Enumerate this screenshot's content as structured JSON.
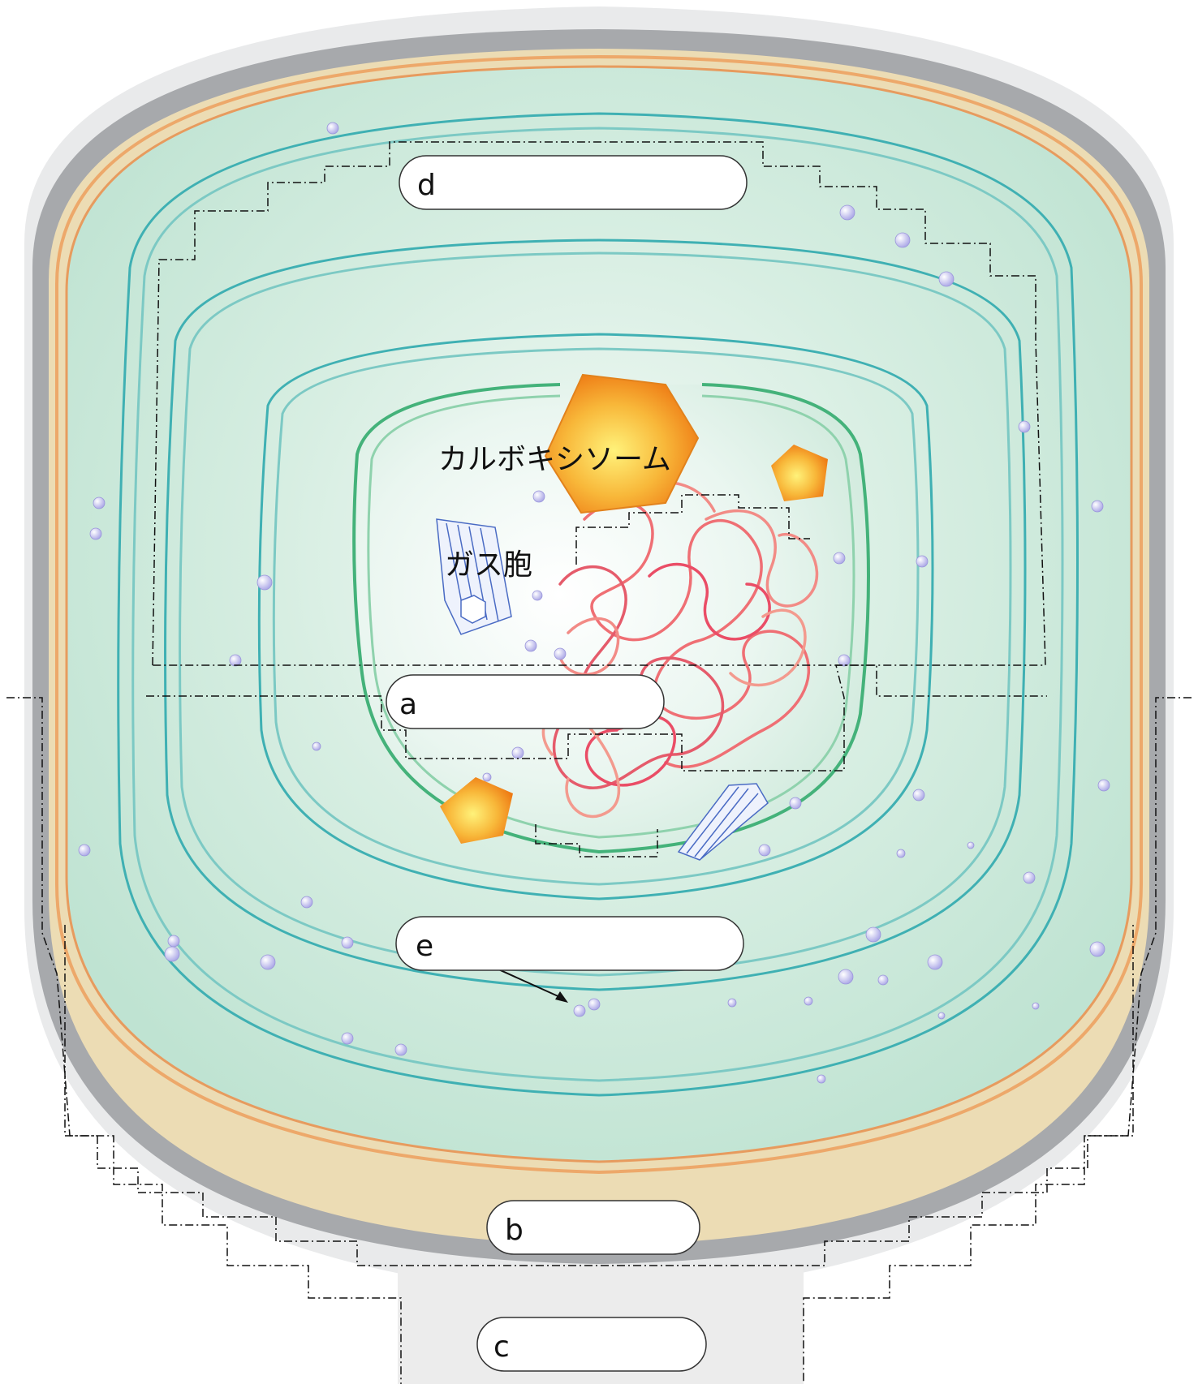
{
  "diagram": {
    "labels": {
      "carboxysome": "カルボキシソーム",
      "gas_vesicle": "ガス胞"
    },
    "blanks": [
      {
        "id": "a",
        "letter": "a"
      },
      {
        "id": "b",
        "letter": "b"
      },
      {
        "id": "c",
        "letter": "c"
      },
      {
        "id": "d",
        "letter": "d"
      },
      {
        "id": "e",
        "letter": "e"
      }
    ],
    "colors": {
      "outer_layer": "#e6e6e6",
      "cell_wall": "#a7a9ac",
      "peptidoglycan": "#ecdcb4",
      "cytoplasm": "#d7eee2",
      "thylakoid": "#3fb0b3",
      "nucleoid_boundary": "#44b27a",
      "dna": "#ef6f74",
      "carboxysome": "#f6a21c",
      "gas_vesicle": "#4a6bc4",
      "granule": "#b9b7ec"
    }
  }
}
